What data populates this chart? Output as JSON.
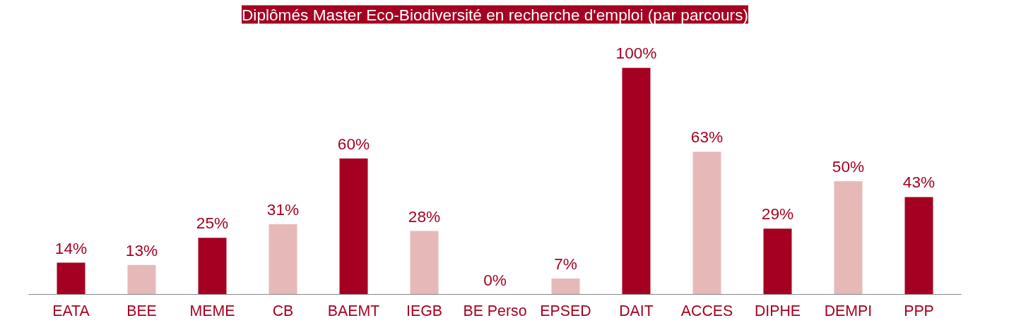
{
  "chart_data": {
    "type": "bar",
    "title": "Diplômés Master Eco-Biodiversité en recherche d'emploi (par parcours)",
    "categories": [
      "EATA",
      "BEE",
      "MEME",
      "CB",
      "BAEMT",
      "IEGB",
      "BE Perso",
      "EPSED",
      "DAIT",
      "ACCES",
      "DIPHE",
      "DEMPI",
      "PPP"
    ],
    "values": [
      14,
      13,
      25,
      31,
      60,
      28,
      0,
      7,
      100,
      63,
      29,
      50,
      43
    ],
    "colors": [
      "#a50021",
      "#e6b9b8",
      "#a50021",
      "#e6b9b8",
      "#a50021",
      "#e6b9b8",
      "#e6b9b8",
      "#e6b9b8",
      "#a50021",
      "#e6b9b8",
      "#a50021",
      "#e6b9b8",
      "#a50021"
    ],
    "value_labels": [
      "14%",
      "13%",
      "25%",
      "31%",
      "60%",
      "28%",
      "0%",
      "7%",
      "100%",
      "63%",
      "29%",
      "50%",
      "43%"
    ],
    "grid": false
  }
}
